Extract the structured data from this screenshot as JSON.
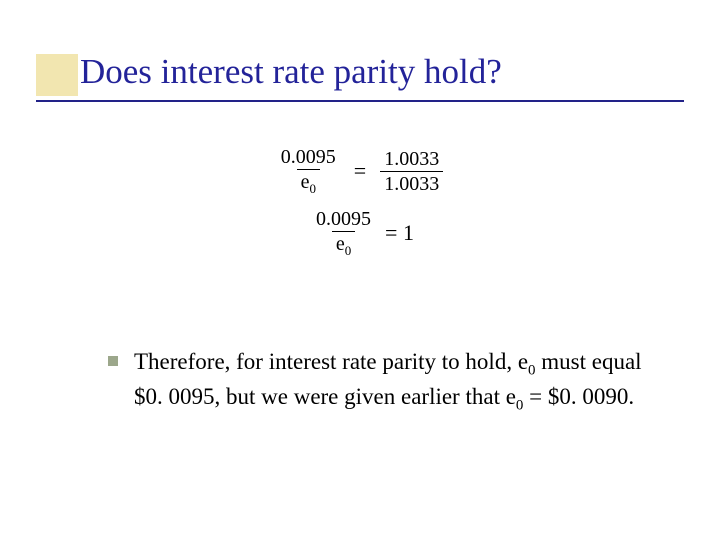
{
  "colors": {
    "accent_box": "#f2e6b0",
    "title": "#232399",
    "underline": "#222288",
    "bullet": "#9ca78b",
    "background": "#ffffff",
    "text": "#000000"
  },
  "title": "Does interest rate parity hold?",
  "equations": {
    "row1": {
      "left_num": "0.0095",
      "left_den_html": "e<sub>0</sub>",
      "right_num": "1.0033",
      "right_den": "1.0033"
    },
    "row2": {
      "left_num": "0.0095",
      "left_den_html": "e<sub>0</sub>",
      "rhs": "= 1"
    }
  },
  "body": {
    "bullet_html": "Therefore, for interest rate parity to hold, e<sub>0</sub> must equal $0. 0095, but we were given earlier that e<sub>0</sub> = $0. 0090."
  },
  "typography": {
    "title_fontsize_pt": 26,
    "body_fontsize_pt": 17,
    "eq_fontsize_pt": 15
  }
}
